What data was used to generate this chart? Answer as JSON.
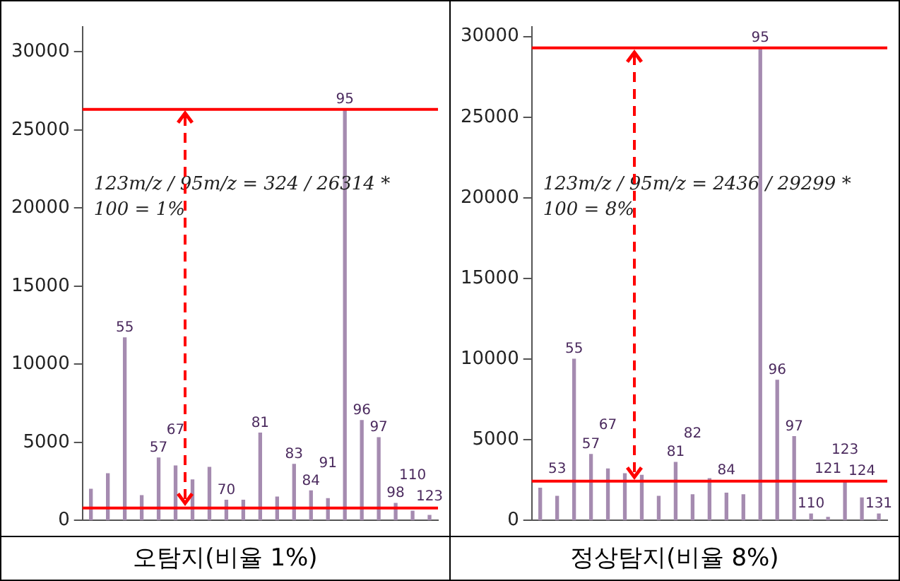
{
  "chart_data": [
    {
      "type": "bar",
      "title": "오탐지(비율 1%)",
      "categories": [
        null,
        null,
        "55",
        null,
        "57",
        "67",
        null,
        null,
        "70",
        null,
        "81",
        null,
        "83",
        "84",
        "91",
        "95",
        "96",
        "97",
        "98",
        "110",
        "123"
      ],
      "series": [
        {
          "color": "#a58bb0",
          "values": [
            2000,
            3000,
            11700,
            1600,
            4000,
            3500,
            2600,
            3400,
            1300,
            1300,
            5600,
            1500,
            3600,
            1900,
            1400,
            26314,
            6400,
            5300,
            1100,
            600,
            324
          ]
        }
      ],
      "ylim": [
        0,
        31600
      ],
      "yticks": [
        0,
        5000,
        10000,
        15000,
        20000,
        25000,
        30000
      ],
      "tick_labels": "y",
      "grid": false,
      "legend": false,
      "ref_lines": [
        {
          "axis": "y",
          "value": 26314,
          "color": "#ff0000"
        },
        {
          "axis": "y",
          "value": 800,
          "color": "#ff0000"
        }
      ],
      "annotations": [
        "123m/z / 95m/z = 324 / 26314 * 100 = 1%"
      ]
    },
    {
      "type": "bar",
      "title": "정상탐지(비율 8%)",
      "categories": [
        null,
        "53",
        "55",
        "57",
        "67",
        null,
        null,
        null,
        "81",
        "82",
        null,
        "84",
        null,
        "95",
        "96",
        "97",
        "110",
        "121",
        "123",
        "124",
        "131"
      ],
      "series": [
        {
          "color": "#a58bb0",
          "values": [
            2000,
            1500,
            10000,
            4100,
            3200,
            2900,
            2800,
            1500,
            3600,
            1600,
            2600,
            1700,
            1600,
            29299,
            8700,
            5200,
            400,
            200,
            2436,
            1400,
            400
          ]
        }
      ],
      "ylim": [
        0,
        30600
      ],
      "yticks": [
        0,
        5000,
        10000,
        15000,
        20000,
        25000,
        30000
      ],
      "tick_labels": "y",
      "grid": false,
      "legend": false,
      "ref_lines": [
        {
          "axis": "y",
          "value": 29299,
          "color": "#ff0000"
        },
        {
          "axis": "y",
          "value": 2436,
          "color": "#ff0000"
        }
      ],
      "annotations": [
        "123m/z / 95m/z = 2436 / 29299 * 100 = 8%"
      ]
    }
  ]
}
